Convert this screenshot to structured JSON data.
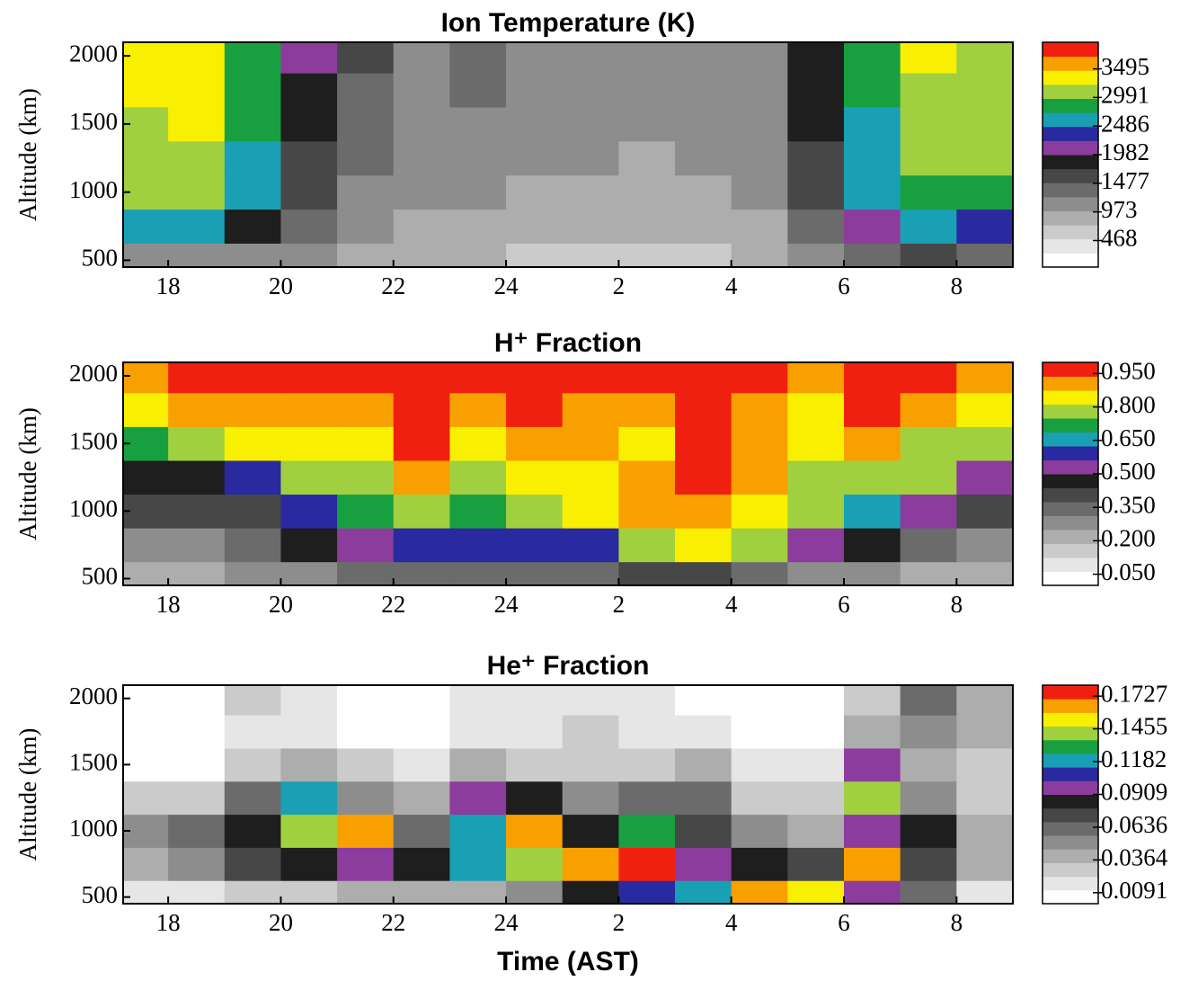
{
  "chart_data": [
    {
      "type": "heatmap",
      "title": "Ion Temperature (K)",
      "ylabel": "Altitude (km)",
      "x": [
        17.5,
        18.5,
        19.5,
        20.5,
        21.5,
        22.5,
        23.5,
        24.5,
        25.5,
        26.5,
        27.5,
        28.5,
        29.5,
        30.5,
        31.5,
        32.5
      ],
      "y": [
        500,
        750,
        1000,
        1250,
        1500,
        1750,
        2000
      ],
      "z": [
        [
          1000,
          2500,
          3000,
          3100,
          3200,
          3300,
          3300
        ],
        [
          1000,
          2600,
          3000,
          3200,
          3300,
          3300,
          3300
        ],
        [
          1200,
          1800,
          2500,
          2700,
          2800,
          2800,
          2800
        ],
        [
          1100,
          1400,
          1600,
          1700,
          1800,
          1900,
          2000
        ],
        [
          900,
          1000,
          1200,
          1300,
          1400,
          1400,
          1500
        ],
        [
          800,
          900,
          1000,
          1100,
          1100,
          1200,
          1200
        ],
        [
          800,
          900,
          1000,
          1100,
          1200,
          1300,
          1300
        ],
        [
          700,
          800,
          900,
          1000,
          1100,
          1100,
          1200
        ],
        [
          700,
          800,
          900,
          1000,
          1000,
          1100,
          1100
        ],
        [
          700,
          800,
          900,
          900,
          1000,
          1000,
          1100
        ],
        [
          700,
          800,
          900,
          1000,
          1000,
          1100,
          1100
        ],
        [
          800,
          900,
          1000,
          1100,
          1100,
          1200,
          1200
        ],
        [
          1100,
          1400,
          1600,
          1700,
          1800,
          1900,
          1900
        ],
        [
          1300,
          2200,
          2500,
          2700,
          2700,
          2800,
          2800
        ],
        [
          1500,
          2600,
          2900,
          3100,
          3200,
          3200,
          3300
        ],
        [
          1400,
          2400,
          2800,
          3000,
          3100,
          3200,
          3200
        ]
      ],
      "xlim": [
        17.2,
        33.0
      ],
      "ylim": [
        450,
        2100
      ],
      "xticks": [
        18,
        20,
        22,
        24,
        {
          "value": 26,
          "label": "2"
        },
        {
          "value": 28,
          "label": "4"
        },
        {
          "value": 30,
          "label": "6"
        },
        {
          "value": 32,
          "label": "8"
        }
      ],
      "yticks": [
        500,
        1000,
        1500,
        2000
      ],
      "zlim": [
        0,
        3964
      ],
      "zticks": [
        468,
        973,
        1477,
        1982,
        2486,
        2991,
        3495
      ],
      "colors": [
        "#ffffff",
        "#e6e6e6",
        "#cbcbcb",
        "#adadad",
        "#8d8d8d",
        "#6b6b6b",
        "#474747",
        "#1e1e1e",
        "#8c3c9c",
        "#2a2aa0",
        "#1aa0b4",
        "#18a040",
        "#a0d040",
        "#f8f000",
        "#f8a000",
        "#f02010"
      ]
    },
    {
      "type": "heatmap",
      "title": "H⁺ Fraction",
      "ylabel": "Altitude (km)",
      "x": [
        17.5,
        18.5,
        19.5,
        20.5,
        21.5,
        22.5,
        23.5,
        24.5,
        25.5,
        26.5,
        27.5,
        28.5,
        29.5,
        30.5,
        31.5,
        32.5
      ],
      "y": [
        500,
        750,
        1000,
        1250,
        1500,
        1750,
        2000
      ],
      "z": [
        [
          0.2,
          0.3,
          0.4,
          0.45,
          0.7,
          0.85,
          0.9
        ],
        [
          0.2,
          0.3,
          0.4,
          0.45,
          0.75,
          0.9,
          1.0
        ],
        [
          0.25,
          0.35,
          0.4,
          0.6,
          0.85,
          0.9,
          1.0
        ],
        [
          0.3,
          0.45,
          0.6,
          0.75,
          0.85,
          0.9,
          0.95
        ],
        [
          0.35,
          0.55,
          0.7,
          0.8,
          0.85,
          0.9,
          0.95
        ],
        [
          0.35,
          0.6,
          0.8,
          0.9,
          0.95,
          1.0,
          1.0
        ],
        [
          0.35,
          0.6,
          0.7,
          0.8,
          0.85,
          0.9,
          0.95
        ],
        [
          0.35,
          0.6,
          0.8,
          0.85,
          0.9,
          0.95,
          1.0
        ],
        [
          0.35,
          0.6,
          0.85,
          0.85,
          0.9,
          0.9,
          0.95
        ],
        [
          0.4,
          0.75,
          0.9,
          0.9,
          0.85,
          0.9,
          0.95
        ],
        [
          0.4,
          0.85,
          0.9,
          0.95,
          0.95,
          1.0,
          1.0
        ],
        [
          0.35,
          0.8,
          0.85,
          0.9,
          0.9,
          0.9,
          0.95
        ],
        [
          0.3,
          0.55,
          0.75,
          0.8,
          0.85,
          0.85,
          0.9
        ],
        [
          0.3,
          0.45,
          0.65,
          0.8,
          0.9,
          1.0,
          1.0
        ],
        [
          0.2,
          0.35,
          0.5,
          0.75,
          0.8,
          0.9,
          0.95
        ],
        [
          0.2,
          0.3,
          0.4,
          0.5,
          0.75,
          0.85,
          0.9
        ]
      ],
      "xlim": [
        17.2,
        33.0
      ],
      "ylim": [
        450,
        2100
      ],
      "xticks": [
        18,
        20,
        22,
        24,
        {
          "value": 26,
          "label": "2"
        },
        {
          "value": 28,
          "label": "4"
        },
        {
          "value": 30,
          "label": "6"
        },
        {
          "value": 32,
          "label": "8"
        }
      ],
      "yticks": [
        500,
        1000,
        1500,
        2000
      ],
      "zlim": [
        0,
        1.0
      ],
      "zticks": [
        {
          "value": 0.05,
          "label": "0.050"
        },
        {
          "value": 0.2,
          "label": "0.200"
        },
        {
          "value": 0.35,
          "label": "0.350"
        },
        {
          "value": 0.5,
          "label": "0.500"
        },
        {
          "value": 0.65,
          "label": "0.650"
        },
        {
          "value": 0.8,
          "label": "0.800"
        },
        {
          "value": 0.95,
          "label": "0.950"
        }
      ],
      "colors": [
        "#ffffff",
        "#e6e6e6",
        "#cbcbcb",
        "#adadad",
        "#8d8d8d",
        "#6b6b6b",
        "#474747",
        "#1e1e1e",
        "#8c3c9c",
        "#2a2aa0",
        "#1aa0b4",
        "#18a040",
        "#a0d040",
        "#f8f000",
        "#f8a000",
        "#f02010"
      ]
    },
    {
      "type": "heatmap",
      "title": "He⁺ Fraction",
      "ylabel": "Altitude (km)",
      "xlabel": "Time (AST)",
      "x": [
        17.5,
        18.5,
        19.5,
        20.5,
        21.5,
        22.5,
        23.5,
        24.5,
        25.5,
        26.5,
        27.5,
        28.5,
        29.5,
        30.5,
        31.5,
        32.5
      ],
      "y": [
        500,
        750,
        1000,
        1250,
        1500,
        1750,
        2000
      ],
      "z": [
        [
          0.02,
          0.04,
          0.05,
          0.03,
          0.01,
          0.01,
          0.01
        ],
        [
          0.02,
          0.05,
          0.06,
          0.03,
          0.01,
          0.01,
          0.01
        ],
        [
          0.03,
          0.07,
          0.08,
          0.06,
          0.03,
          0.02,
          0.03
        ],
        [
          0.03,
          0.08,
          0.14,
          0.12,
          0.04,
          0.02,
          0.02
        ],
        [
          0.04,
          0.1,
          0.17,
          0.05,
          0.03,
          0.01,
          0.01
        ],
        [
          0.04,
          0.09,
          0.06,
          0.04,
          0.02,
          0.01,
          0.01
        ],
        [
          0.04,
          0.12,
          0.12,
          0.1,
          0.04,
          0.02,
          0.02
        ],
        [
          0.05,
          0.14,
          0.17,
          0.08,
          0.03,
          0.02,
          0.02
        ],
        [
          0.08,
          0.16,
          0.08,
          0.05,
          0.03,
          0.03,
          0.02
        ],
        [
          0.11,
          0.18,
          0.13,
          0.06,
          0.03,
          0.02,
          0.02
        ],
        [
          0.12,
          0.1,
          0.07,
          0.06,
          0.04,
          0.02,
          0.01
        ],
        [
          0.17,
          0.09,
          0.05,
          0.03,
          0.02,
          0.01,
          0.01
        ],
        [
          0.15,
          0.07,
          0.04,
          0.03,
          0.02,
          0.01,
          0.01
        ],
        [
          0.1,
          0.16,
          0.1,
          0.14,
          0.1,
          0.04,
          0.03
        ],
        [
          0.06,
          0.07,
          0.08,
          0.05,
          0.04,
          0.05,
          0.06
        ],
        [
          0.02,
          0.04,
          0.04,
          0.03,
          0.03,
          0.04,
          0.04
        ]
      ],
      "xlim": [
        17.2,
        33.0
      ],
      "ylim": [
        450,
        2100
      ],
      "xticks": [
        18,
        20,
        22,
        24,
        {
          "value": 26,
          "label": "2"
        },
        {
          "value": 28,
          "label": "4"
        },
        {
          "value": 30,
          "label": "6"
        },
        {
          "value": 32,
          "label": "8"
        }
      ],
      "yticks": [
        500,
        1000,
        1500,
        2000
      ],
      "zlim": [
        0,
        0.1818
      ],
      "zticks": [
        0.0091,
        0.0364,
        0.0636,
        0.0909,
        0.1182,
        0.1455,
        0.1727
      ],
      "colors": [
        "#ffffff",
        "#e6e6e6",
        "#cbcbcb",
        "#adadad",
        "#8d8d8d",
        "#6b6b6b",
        "#474747",
        "#1e1e1e",
        "#8c3c9c",
        "#2a2aa0",
        "#1aa0b4",
        "#18a040",
        "#a0d040",
        "#f8f000",
        "#f8a000",
        "#f02010"
      ]
    }
  ]
}
